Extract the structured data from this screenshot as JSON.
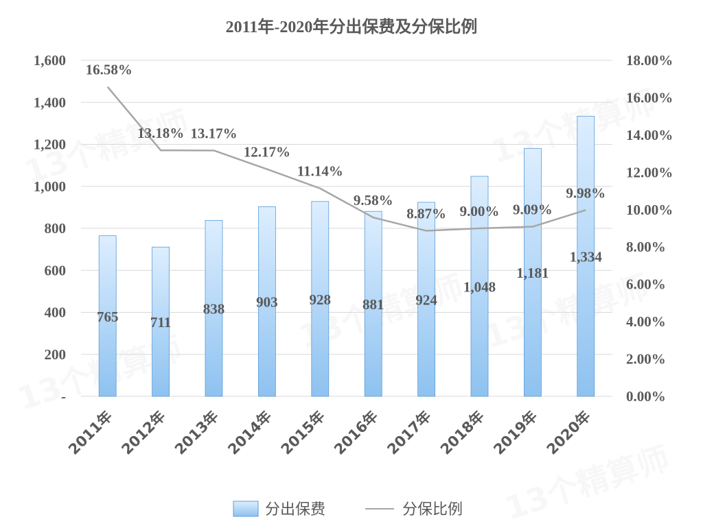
{
  "chart_data": {
    "type": "bar",
    "title": "2011年-2020年分出保费及分保比例",
    "categories": [
      "2011年",
      "2012年",
      "2013年",
      "2014年",
      "2015年",
      "2016年",
      "2017年",
      "2018年",
      "2019年",
      "2020年"
    ],
    "series": [
      {
        "name": "分出保费",
        "type": "bar",
        "axis": "left",
        "values": [
          765,
          711,
          838,
          903,
          928,
          881,
          924,
          1048,
          1181,
          1334
        ],
        "labels": [
          "765",
          "711",
          "838",
          "903",
          "928",
          "881",
          "924",
          "1,048",
          "1,181",
          "1,334"
        ]
      },
      {
        "name": "分保比例",
        "type": "line",
        "axis": "right",
        "values": [
          16.58,
          13.18,
          13.17,
          12.17,
          11.14,
          9.58,
          8.87,
          9.0,
          9.09,
          9.98
        ],
        "labels": [
          "16.58%",
          "13.18%",
          "13.17%",
          "12.17%",
          "11.14%",
          "9.58%",
          "8.87%",
          "9.00%",
          "9.09%",
          "9.98%"
        ]
      }
    ],
    "y_left": {
      "min": 0,
      "max": 1600,
      "ticks": [
        0,
        200,
        400,
        600,
        800,
        1000,
        1200,
        1400,
        1600
      ],
      "tick_labels": [
        "-",
        "200",
        "400",
        "600",
        "800",
        "1,000",
        "1,200",
        "1,400",
        "1,600"
      ]
    },
    "y_right": {
      "min": 0,
      "max": 18,
      "ticks": [
        0,
        2,
        4,
        6,
        8,
        10,
        12,
        14,
        16,
        18
      ],
      "tick_labels": [
        "0.00%",
        "2.00%",
        "4.00%",
        "6.00%",
        "8.00%",
        "10.00%",
        "12.00%",
        "14.00%",
        "16.00%",
        "18.00%"
      ]
    },
    "grid": true,
    "legend": "bottom",
    "colors": {
      "bar_top": "#ddeeff",
      "bar_bottom": "#8ec2f0",
      "bar_stroke": "#5b9bd5",
      "line": "#a6a6a6",
      "text": "#595959",
      "grid": "#d9d9d9"
    }
  },
  "watermark": "13个精算师"
}
